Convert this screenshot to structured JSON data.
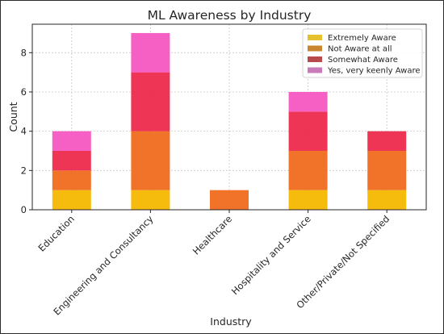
{
  "chart_data": {
    "type": "bar",
    "stacked": true,
    "title": "ML Awareness by Industry",
    "xlabel": "Industry",
    "ylabel": "Count",
    "ylim": [
      0,
      9.45
    ],
    "yticks": [
      0,
      2,
      4,
      6,
      8
    ],
    "grid": true,
    "legend_position": "top-right",
    "categories": [
      "Education",
      "Engineering and Consultancy",
      "Healthcare",
      "Hospitality and Service",
      "Other/Private/Not Specified"
    ],
    "series": [
      {
        "name": "Extremely Aware",
        "color": "#f5b800",
        "values": [
          1,
          1,
          0,
          1,
          1
        ]
      },
      {
        "name": "Not Aware at all",
        "color": "#f06a1d",
        "values": [
          1,
          3,
          1,
          2,
          2
        ]
      },
      {
        "name": "Somewhat Aware",
        "color": "#ee2a4d",
        "values": [
          1,
          3,
          0,
          2,
          1
        ]
      },
      {
        "name": "Yes, very keenly Aware",
        "color": "#f557c2",
        "values": [
          1,
          2,
          0,
          1,
          0
        ]
      }
    ],
    "legend_swatch_colors": [
      "#e6c02d",
      "#c9862e",
      "#b8494c",
      "#c97ab8"
    ]
  }
}
